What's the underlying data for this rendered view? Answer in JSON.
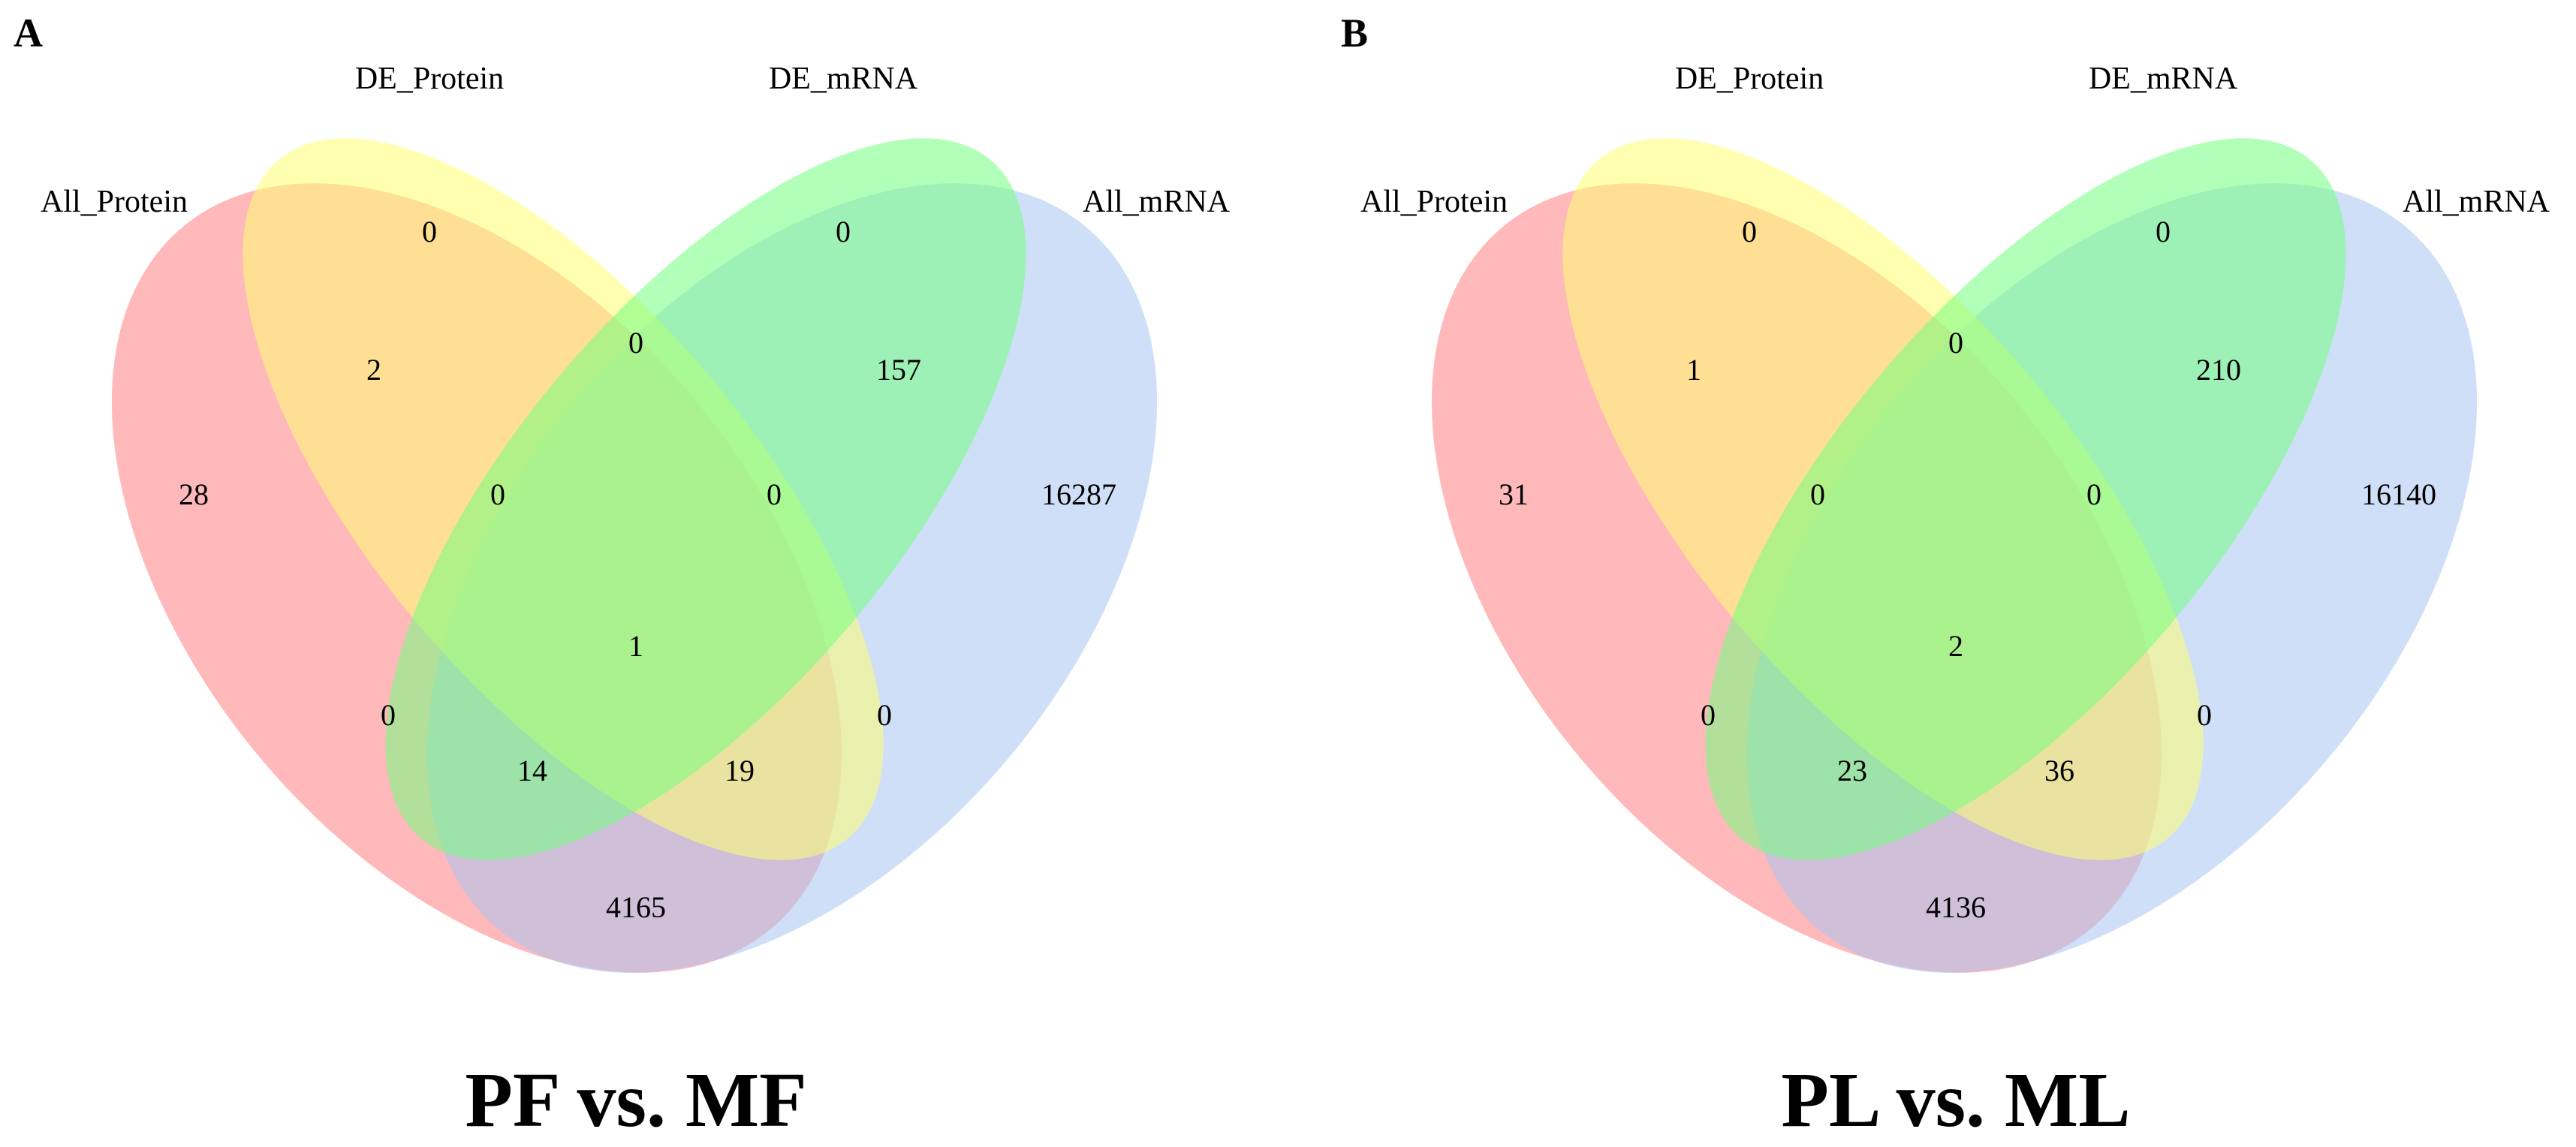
{
  "colors": {
    "all_protein": "#ff7f84",
    "de_protein": "#ffff73",
    "de_mrna": "#73ff80",
    "all_mrna": "#a9c4f2",
    "ellipse_opacity": 0.55
  },
  "panels": [
    {
      "letter": "A",
      "title": "PF vs. MF",
      "labels": {
        "all_protein": "All_Protein",
        "de_protein": "DE_Protein",
        "de_mrna": "DE_mRNA",
        "all_mrna": "All_mRNA"
      },
      "counts": {
        "all_protein_only": "28",
        "de_protein_only": "0",
        "de_mrna_only": "0",
        "all_mrna_only": "16287",
        "allprot_deprot": "2",
        "deprot_demrna": "0",
        "demrna_allmrna": "157",
        "allprot_deprot_demrna": "0",
        "deprot_demrna_allmrna": "0",
        "all_four": "1",
        "allprot_demrna": "0",
        "deprot_allmrna": "0",
        "allprot_demrna_allmrna": "14",
        "allprot_deprot_allmrna": "19",
        "allprot_allmrna": "4165"
      }
    },
    {
      "letter": "B",
      "title": "PL vs. ML",
      "labels": {
        "all_protein": "All_Protein",
        "de_protein": "DE_Protein",
        "de_mrna": "DE_mRNA",
        "all_mrna": "All_mRNA"
      },
      "counts": {
        "all_protein_only": "31",
        "de_protein_only": "0",
        "de_mrna_only": "0",
        "all_mrna_only": "16140",
        "allprot_deprot": "1",
        "deprot_demrna": "0",
        "demrna_allmrna": "210",
        "allprot_deprot_demrna": "0",
        "deprot_demrna_allmrna": "0",
        "all_four": "2",
        "allprot_demrna": "0",
        "deprot_allmrna": "0",
        "allprot_demrna_allmrna": "23",
        "allprot_deprot_allmrna": "36",
        "allprot_allmrna": "4136"
      }
    }
  ]
}
